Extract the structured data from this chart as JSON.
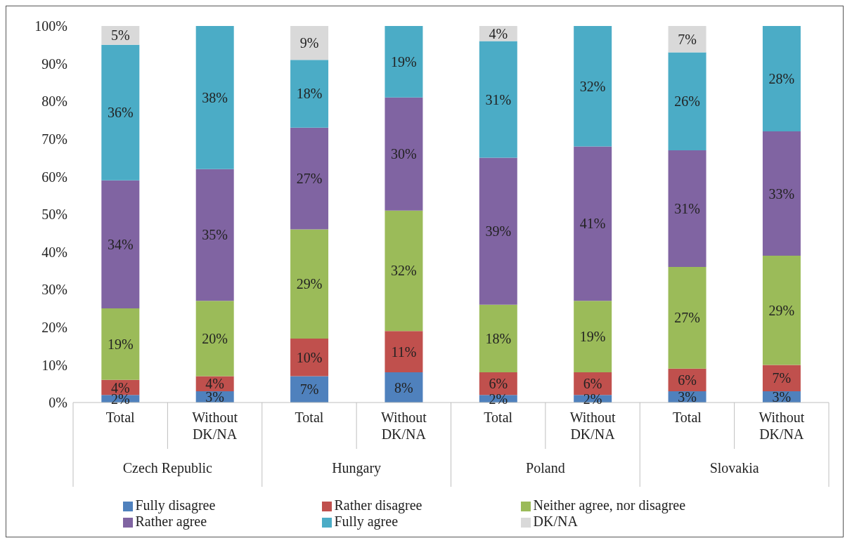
{
  "chart_data": {
    "type": "bar",
    "stacked": true,
    "categories": [
      "Total",
      "Without DK/NA",
      "Total",
      "Without DK/NA",
      "Total",
      "Without DK/NA",
      "Total",
      "Without DK/NA"
    ],
    "annotations": [
      "Czech Republic",
      "Hungary",
      "Poland",
      "Slovakia"
    ],
    "series": [
      {
        "name": "Fully disagree",
        "color": "#4f81bd",
        "values": [
          2,
          3,
          7,
          8,
          2,
          2,
          3,
          3
        ],
        "value_labels": [
          "2%",
          "3%",
          "7%",
          "8%",
          "2%",
          "2%",
          "3%",
          "3%"
        ]
      },
      {
        "name": "Rather disagree",
        "color": "#c0504d",
        "values": [
          4,
          4,
          10,
          11,
          6,
          6,
          6,
          7
        ],
        "value_labels": [
          "4%",
          "4%",
          "10%",
          "11%",
          "6%",
          "6%",
          "6%",
          "7%"
        ]
      },
      {
        "name": "Neither agree, nor disagree",
        "color": "#9bbb59",
        "values": [
          19,
          20,
          29,
          32,
          18,
          19,
          27,
          29
        ],
        "value_labels": [
          "19%",
          "20%",
          "29%",
          "32%",
          "18%",
          "19%",
          "27%",
          "29%"
        ]
      },
      {
        "name": "Rather agree",
        "color": "#8064a2",
        "values": [
          34,
          35,
          27,
          30,
          39,
          41,
          31,
          33
        ],
        "value_labels": [
          "34%",
          "35%",
          "27%",
          "30%",
          "39%",
          "41%",
          "31%",
          "33%"
        ]
      },
      {
        "name": "Fully agree",
        "color": "#4bacc6",
        "values": [
          36,
          38,
          18,
          19,
          31,
          32,
          26,
          28
        ],
        "value_labels": [
          "36%",
          "38%",
          "18%",
          "19%",
          "31%",
          "32%",
          "26%",
          "28%"
        ]
      },
      {
        "name": "DK/NA",
        "color": "#d9d9d9",
        "values": [
          5,
          null,
          9,
          null,
          4,
          null,
          7,
          null
        ],
        "value_labels": [
          "5%",
          null,
          "9%",
          null,
          "4%",
          null,
          "7%",
          null
        ]
      }
    ],
    "ylim": [
      0,
      100
    ],
    "yticks": [
      {
        "value": 0,
        "label": "0%"
      },
      {
        "value": 10,
        "label": "10%"
      },
      {
        "value": 20,
        "label": "20%"
      },
      {
        "value": 30,
        "label": "30%"
      },
      {
        "value": 40,
        "label": "40%"
      },
      {
        "value": 50,
        "label": "50%"
      },
      {
        "value": 60,
        "label": "60%"
      },
      {
        "value": 70,
        "label": "70%"
      },
      {
        "value": 80,
        "label": "80%"
      },
      {
        "value": 90,
        "label": "90%"
      },
      {
        "value": 100,
        "label": "100%"
      }
    ],
    "legend": "bottom"
  }
}
